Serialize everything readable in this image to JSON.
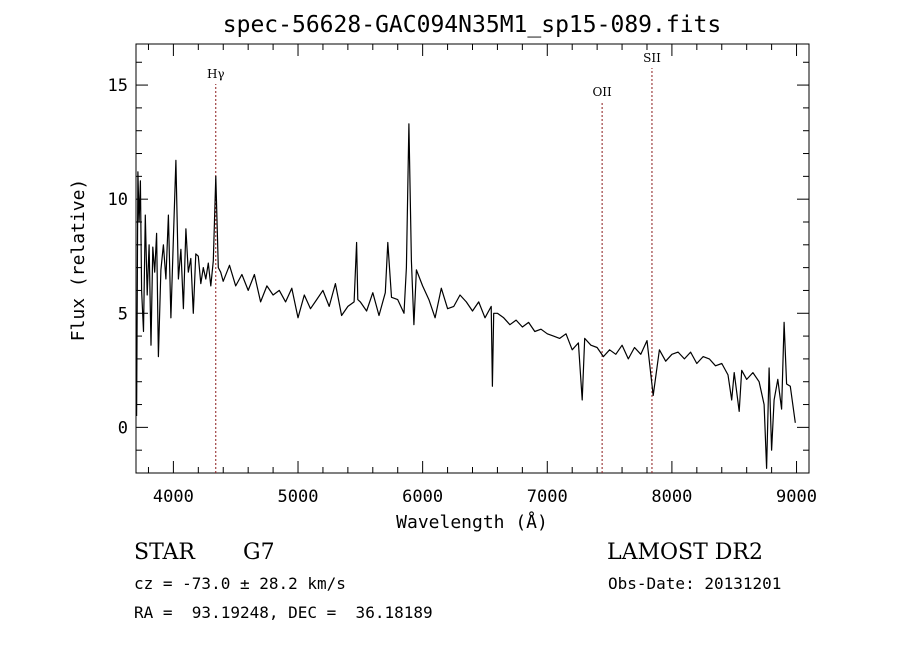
{
  "chart_data": {
    "type": "line",
    "title": "spec-56628-GAC094N35M1_sp15-089.fits",
    "xlabel": "Wavelength (Å)",
    "ylabel": "Flux (relative)",
    "xlim": [
      3700,
      9100
    ],
    "ylim": [
      -2,
      16.8
    ],
    "xticks": [
      4000,
      5000,
      6000,
      7000,
      8000,
      9000
    ],
    "yticks": [
      0,
      5,
      10,
      15
    ],
    "grid": false,
    "lines": [
      {
        "label": "Hγ",
        "x": 4340
      },
      {
        "label": "OII",
        "x": 7440
      },
      {
        "label": "SII",
        "x": 7840
      }
    ],
    "series": [
      {
        "x": [
          3705,
          3715,
          3725,
          3735,
          3745,
          3760,
          3775,
          3790,
          3805,
          3820,
          3835,
          3850,
          3865,
          3880,
          3900,
          3920,
          3940,
          3960,
          3980,
          4000,
          4020,
          4040,
          4060,
          4080,
          4100,
          4120,
          4140,
          4160,
          4180,
          4200,
          4220,
          4240,
          4260,
          4280,
          4300,
          4320,
          4340,
          4360,
          4380,
          4400,
          4450,
          4500,
          4550,
          4600,
          4650,
          4700,
          4750,
          4800,
          4850,
          4900,
          4950,
          5000,
          5050,
          5100,
          5150,
          5200,
          5250,
          5300,
          5350,
          5400,
          5450,
          5470,
          5480,
          5500,
          5550,
          5600,
          5650,
          5700,
          5720,
          5750,
          5800,
          5850,
          5870,
          5890,
          5910,
          5930,
          5950,
          6000,
          6050,
          6100,
          6150,
          6200,
          6250,
          6300,
          6350,
          6400,
          6450,
          6500,
          6550,
          6560,
          6570,
          6600,
          6650,
          6700,
          6750,
          6800,
          6850,
          6900,
          6950,
          7000,
          7050,
          7100,
          7150,
          7200,
          7250,
          7280,
          7300,
          7350,
          7400,
          7450,
          7500,
          7550,
          7600,
          7650,
          7700,
          7750,
          7800,
          7850,
          7900,
          7950,
          8000,
          8050,
          8100,
          8150,
          8200,
          8250,
          8300,
          8350,
          8400,
          8450,
          8480,
          8500,
          8540,
          8560,
          8600,
          8650,
          8700,
          8740,
          8760,
          8780,
          8800,
          8820,
          8850,
          8880,
          8900,
          8920,
          8950,
          8990
        ],
        "values": [
          0.5,
          11.2,
          9.0,
          10.8,
          6.0,
          4.2,
          9.3,
          5.8,
          8.0,
          3.6,
          7.9,
          6.8,
          8.5,
          3.1,
          6.9,
          8.0,
          6.5,
          9.3,
          4.8,
          8.3,
          11.7,
          6.5,
          7.8,
          5.2,
          8.7,
          6.8,
          7.4,
          5.0,
          7.6,
          7.5,
          6.3,
          7.0,
          6.5,
          7.2,
          6.2,
          7.3,
          11.0,
          7.0,
          6.8,
          6.4,
          7.1,
          6.2,
          6.7,
          6.0,
          6.7,
          5.5,
          6.2,
          5.8,
          6.0,
          5.5,
          6.1,
          4.8,
          5.8,
          5.2,
          5.6,
          6.0,
          5.3,
          6.3,
          4.9,
          5.3,
          5.5,
          8.1,
          5.6,
          5.5,
          5.1,
          5.9,
          4.9,
          5.9,
          8.1,
          5.7,
          5.6,
          5.0,
          7.0,
          13.3,
          7.3,
          4.5,
          6.9,
          6.2,
          5.6,
          4.8,
          6.1,
          5.2,
          5.3,
          5.8,
          5.5,
          5.1,
          5.5,
          4.8,
          5.3,
          1.8,
          5.0,
          5.0,
          4.8,
          4.5,
          4.7,
          4.4,
          4.6,
          4.2,
          4.3,
          4.1,
          4.0,
          3.9,
          4.1,
          3.4,
          3.7,
          1.2,
          3.9,
          3.6,
          3.5,
          3.1,
          3.4,
          3.2,
          3.6,
          3.0,
          3.5,
          3.2,
          3.8,
          1.4,
          3.4,
          2.9,
          3.2,
          3.3,
          3.0,
          3.3,
          2.8,
          3.1,
          3.0,
          2.7,
          2.8,
          2.3,
          1.2,
          2.4,
          0.7,
          2.5,
          2.1,
          2.4,
          2.0,
          1.0,
          -1.8,
          2.6,
          -1.0,
          1.2,
          2.1,
          0.8,
          4.6,
          1.9,
          1.8,
          0.2
        ]
      }
    ]
  },
  "info": {
    "object_class": "STAR",
    "subclass": "G7",
    "survey": "LAMOST DR2",
    "cz": "cz = -73.0 ± 28.2 km/s",
    "obs_date": "Obs-Date: 20131201",
    "coords": "RA =  93.19248, DEC =  36.18189"
  }
}
